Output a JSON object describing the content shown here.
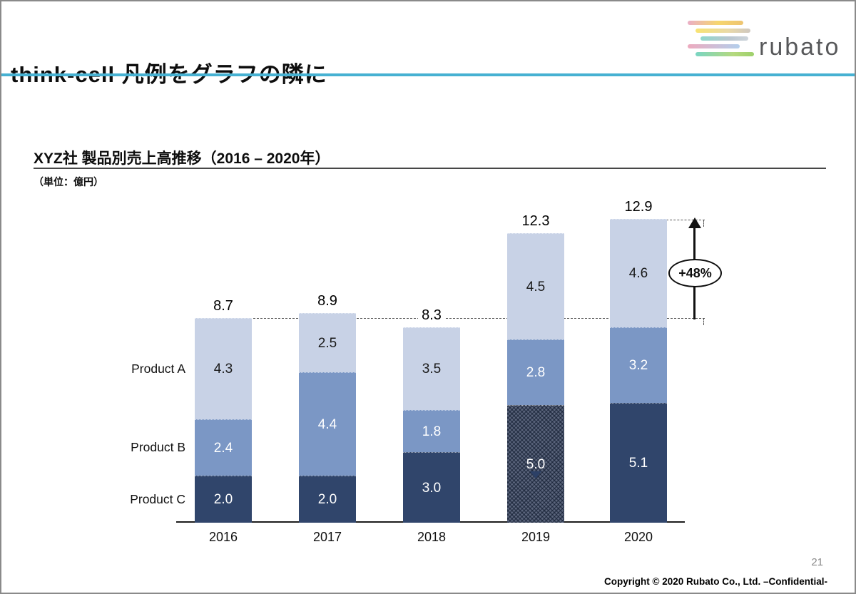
{
  "slide": {
    "title": "think-cell 凡例をグラフの隣に",
    "page_number": "21",
    "footer": "Copyright © 2020 Rubato Co., Ltd. –Confidential-",
    "accent_color": "#46b1d2"
  },
  "logo": {
    "text": "rubato"
  },
  "chart_header": {
    "title": "XYZ社 製品別売上高推移（2016 – 2020年）",
    "unit": "（単位：億円）"
  },
  "chart_data": {
    "type": "bar",
    "stacked": true,
    "title": "XYZ社 製品別売上高推移（2016 – 2020年）",
    "unit": "億円",
    "categories": [
      "2016",
      "2017",
      "2018",
      "2019",
      "2020"
    ],
    "series": [
      {
        "name": "Product A",
        "color": "#c8d2e6",
        "label_color": "#1a1a1a",
        "values": [
          4.3,
          2.5,
          3.5,
          4.5,
          4.6
        ]
      },
      {
        "name": "Product B",
        "color": "#7b97c5",
        "label_color": "#ffffff",
        "values": [
          2.4,
          4.4,
          1.8,
          2.8,
          3.2
        ]
      },
      {
        "name": "Product C",
        "color": "#30456b",
        "label_color": "#ffffff",
        "values": [
          2.0,
          2.0,
          3.0,
          5.0,
          5.1
        ]
      }
    ],
    "totals": [
      8.7,
      8.9,
      8.3,
      12.3,
      12.9
    ],
    "stack_order": "Product C bottom, Product B middle, Product A top",
    "patterned_segment": {
      "category": "2019",
      "series": "Product C"
    },
    "annotation": {
      "label": "+48%",
      "from_total": 8.7,
      "to_total": 12.9
    },
    "legend_position": "left of first bar, aligned to 2016 segments",
    "axes": "x-axis baseline only, no y-axis, no gridlines"
  }
}
